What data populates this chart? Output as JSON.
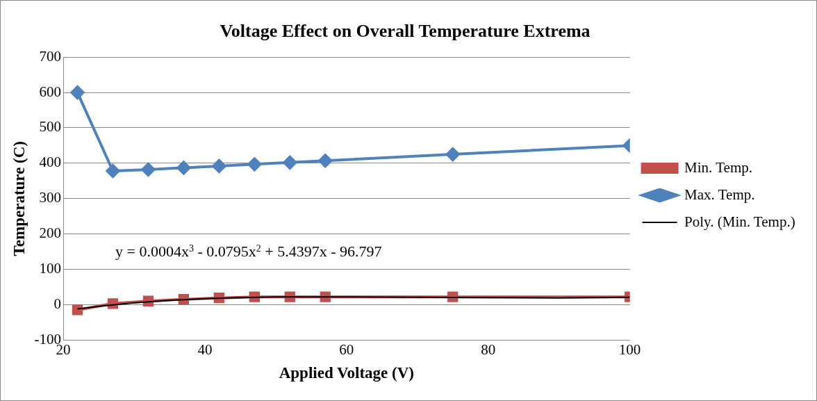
{
  "chart_data": {
    "type": "line",
    "title": "Voltage Effect on Overall Temperature Extrema",
    "xlabel": "Applied Voltage (V)",
    "ylabel": "Temperature (C)",
    "xlim": [
      20,
      100
    ],
    "xticks": [
      20,
      40,
      60,
      80,
      100
    ],
    "ylim": [
      -100,
      700
    ],
    "yticks": [
      -100,
      0,
      100,
      200,
      300,
      400,
      500,
      600,
      700
    ],
    "grid": "y",
    "legend": "right",
    "line_style": "solid",
    "annotations": [
      "y = 0.0004x$^{3}$ - 0.0795x$^{2}$ + 5.4397x - 96.797"
    ],
    "series": [
      {
        "name": "Min. Temp.",
        "color": "#c0504d",
        "marker": "square",
        "x": [
          22,
          27,
          32,
          37,
          42,
          47,
          52,
          57,
          75,
          100
        ],
        "values": [
          -15,
          3,
          10,
          15,
          19,
          22,
          22,
          22,
          22,
          22
        ]
      },
      {
        "name": "Max. Temp.",
        "color": "#4f81bd",
        "marker": "diamond",
        "x": [
          22,
          27,
          32,
          37,
          42,
          47,
          52,
          57,
          75,
          100
        ],
        "values": [
          600,
          378,
          382,
          387,
          392,
          397,
          402,
          407,
          425,
          450
        ]
      },
      {
        "name": "Poly. (Min. Temp.)",
        "color": "#000000",
        "marker": "none",
        "x": [
          22,
          26,
          30,
          35,
          40,
          45,
          50,
          60,
          70,
          80,
          90,
          100
        ],
        "values": [
          -12,
          -3,
          5,
          12,
          17,
          20,
          22,
          22,
          21,
          20,
          19,
          21
        ]
      }
    ]
  }
}
